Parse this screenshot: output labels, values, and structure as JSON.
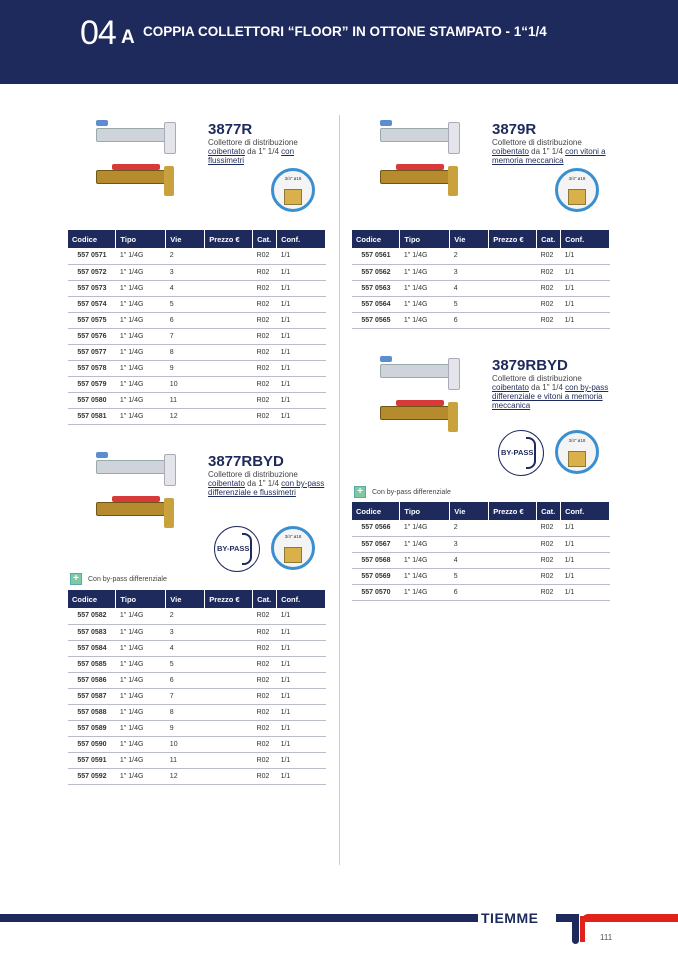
{
  "header": {
    "number": "04",
    "suffix": "A",
    "title": "COPPIA COLLETTORI “FLOOR” IN OTTONE STAMPATO - 1“1/4"
  },
  "columns": [
    "Codice",
    "Tipo",
    "Vie",
    "Prezzo €",
    "Cat.",
    "Conf."
  ],
  "note": "Con by-pass differenziale",
  "bypass_label": "BY-PASS",
  "fitting_label": "3/4\" ø18",
  "products": [
    {
      "code": "3877R",
      "desc_pre": "Collettore di distribuzione",
      "desc_u1": "coibentato",
      "desc_mid": " da 1\" 1/4 ",
      "desc_u2": "con flussimetri",
      "rows": [
        [
          "557 0571",
          "1\" 1/4G",
          "2",
          "",
          "R02",
          "1/1"
        ],
        [
          "557 0572",
          "1\" 1/4G",
          "3",
          "",
          "R02",
          "1/1"
        ],
        [
          "557 0573",
          "1\" 1/4G",
          "4",
          "",
          "R02",
          "1/1"
        ],
        [
          "557 0574",
          "1\" 1/4G",
          "5",
          "",
          "R02",
          "1/1"
        ],
        [
          "557 0575",
          "1\" 1/4G",
          "6",
          "",
          "R02",
          "1/1"
        ],
        [
          "557 0576",
          "1\" 1/4G",
          "7",
          "",
          "R02",
          "1/1"
        ],
        [
          "557 0577",
          "1\" 1/4G",
          "8",
          "",
          "R02",
          "1/1"
        ],
        [
          "557 0578",
          "1\" 1/4G",
          "9",
          "",
          "R02",
          "1/1"
        ],
        [
          "557 0579",
          "1\" 1/4G",
          "10",
          "",
          "R02",
          "1/1"
        ],
        [
          "557 0580",
          "1\" 1/4G",
          "11",
          "",
          "R02",
          "1/1"
        ],
        [
          "557 0581",
          "1\" 1/4G",
          "12",
          "",
          "R02",
          "1/1"
        ]
      ]
    },
    {
      "code": "3877RBYD",
      "desc_pre": "Collettore di distribuzione",
      "desc_u1": "coibentato",
      "desc_mid": " da 1\" 1/4 ",
      "desc_u2": "con by-pass differenziale e flussimetri",
      "rows": [
        [
          "557 0582",
          "1\" 1/4G",
          "2",
          "",
          "R02",
          "1/1"
        ],
        [
          "557 0583",
          "1\" 1/4G",
          "3",
          "",
          "R02",
          "1/1"
        ],
        [
          "557 0584",
          "1\" 1/4G",
          "4",
          "",
          "R02",
          "1/1"
        ],
        [
          "557 0585",
          "1\" 1/4G",
          "5",
          "",
          "R02",
          "1/1"
        ],
        [
          "557 0586",
          "1\" 1/4G",
          "6",
          "",
          "R02",
          "1/1"
        ],
        [
          "557 0587",
          "1\" 1/4G",
          "7",
          "",
          "R02",
          "1/1"
        ],
        [
          "557 0588",
          "1\" 1/4G",
          "8",
          "",
          "R02",
          "1/1"
        ],
        [
          "557 0589",
          "1\" 1/4G",
          "9",
          "",
          "R02",
          "1/1"
        ],
        [
          "557 0590",
          "1\" 1/4G",
          "10",
          "",
          "R02",
          "1/1"
        ],
        [
          "557 0591",
          "1\" 1/4G",
          "11",
          "",
          "R02",
          "1/1"
        ],
        [
          "557 0592",
          "1\" 1/4G",
          "12",
          "",
          "R02",
          "1/1"
        ]
      ]
    },
    {
      "code": "3879R",
      "desc_pre": "Collettore di distribuzione",
      "desc_u1": "coibentato",
      "desc_mid": " da 1\" 1/4 ",
      "desc_u2": "con vitoni a memoria meccanica",
      "rows": [
        [
          "557 0561",
          "1\" 1/4G",
          "2",
          "",
          "R02",
          "1/1"
        ],
        [
          "557 0562",
          "1\" 1/4G",
          "3",
          "",
          "R02",
          "1/1"
        ],
        [
          "557 0563",
          "1\" 1/4G",
          "4",
          "",
          "R02",
          "1/1"
        ],
        [
          "557 0564",
          "1\" 1/4G",
          "5",
          "",
          "R02",
          "1/1"
        ],
        [
          "557 0565",
          "1\" 1/4G",
          "6",
          "",
          "R02",
          "1/1"
        ]
      ]
    },
    {
      "code": "3879RBYD",
      "desc_pre": "Collettore di distribuzione",
      "desc_u1": "coibentato",
      "desc_mid": " da 1\" 1/4 ",
      "desc_u2": "con by-pass differenziale e vitoni a memoria meccanica",
      "rows": [
        [
          "557 0566",
          "1\" 1/4G",
          "2",
          "",
          "R02",
          "1/1"
        ],
        [
          "557 0567",
          "1\" 1/4G",
          "3",
          "",
          "R02",
          "1/1"
        ],
        [
          "557 0568",
          "1\" 1/4G",
          "4",
          "",
          "R02",
          "1/1"
        ],
        [
          "557 0569",
          "1\" 1/4G",
          "5",
          "",
          "R02",
          "1/1"
        ],
        [
          "557 0570",
          "1\" 1/4G",
          "6",
          "",
          "R02",
          "1/1"
        ]
      ]
    }
  ],
  "footer": {
    "brand": "TIEMME",
    "page": "111"
  },
  "colors": {
    "navy": "#1f2a5c",
    "red": "#e0221b",
    "blue": "#3a8fd0"
  }
}
